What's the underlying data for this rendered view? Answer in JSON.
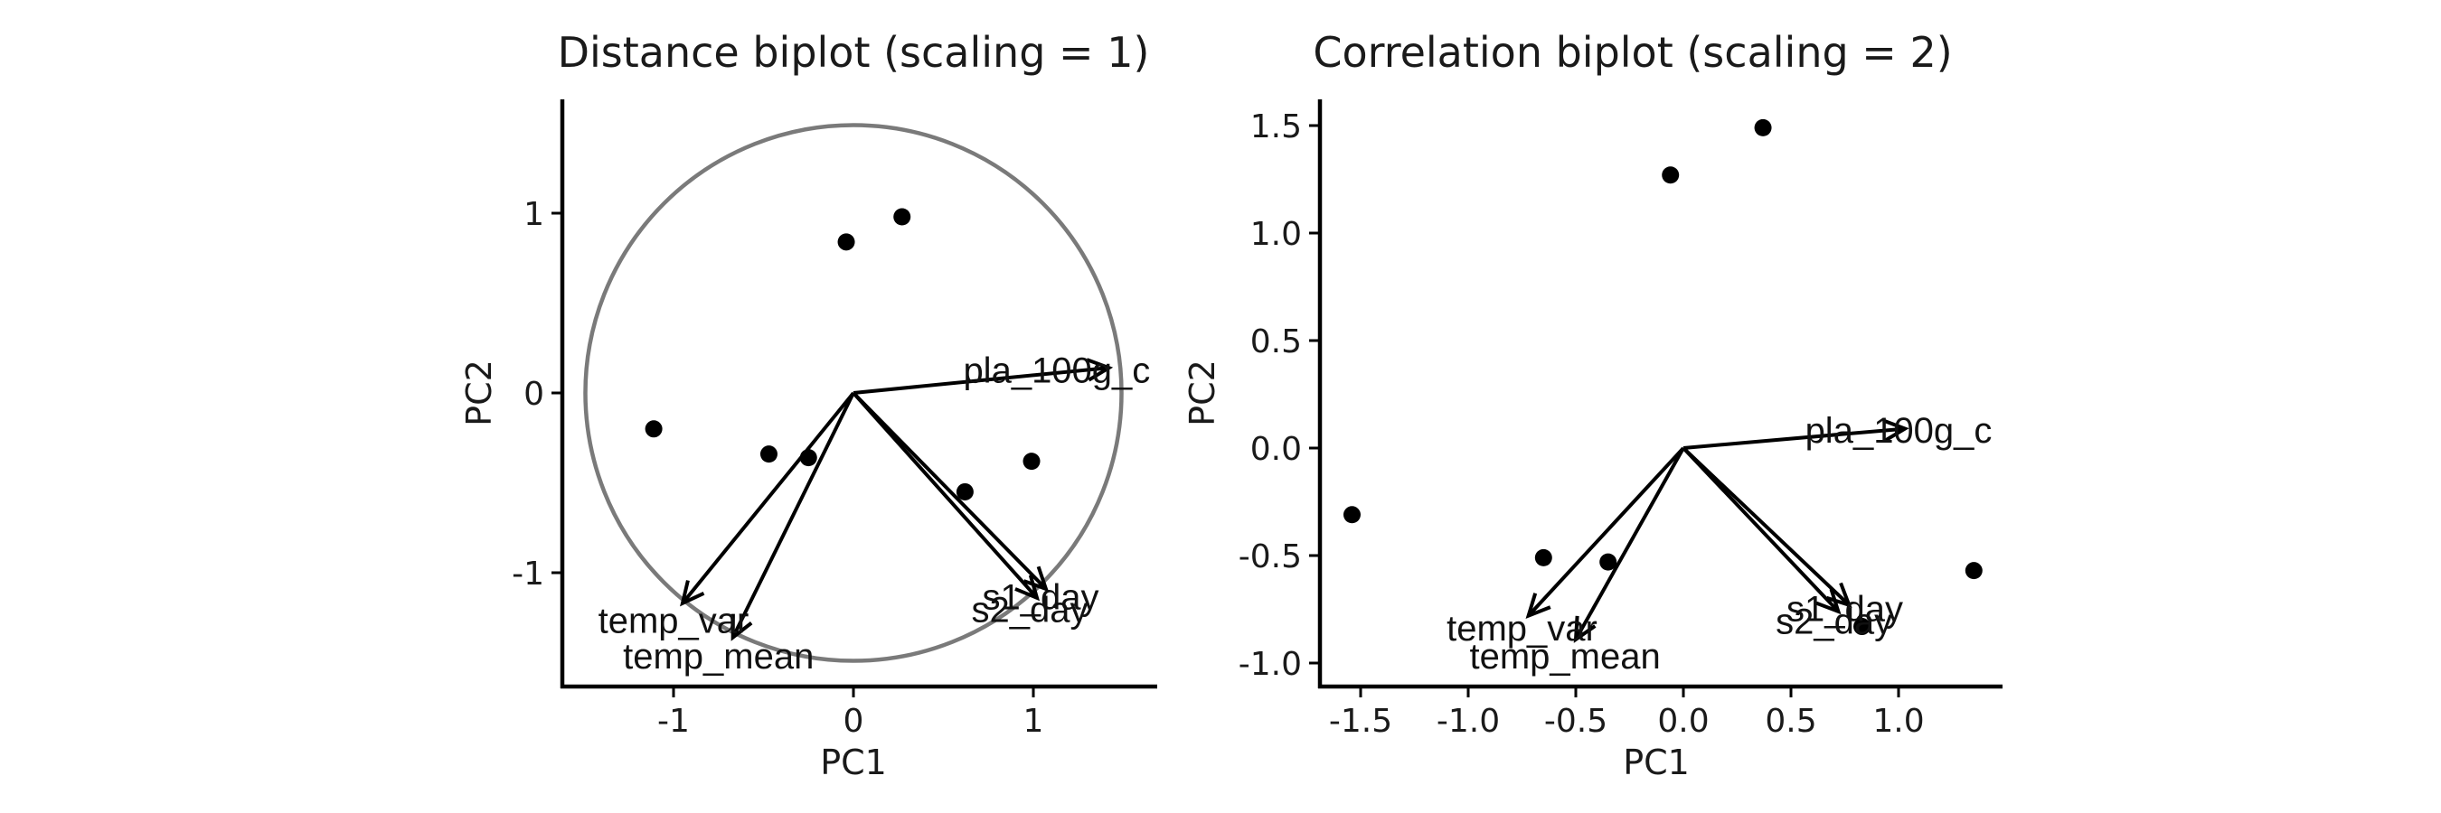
{
  "chart_data": [
    {
      "type": "scatter",
      "title": "Distance biplot (scaling = 1)",
      "xlabel": "PC1",
      "ylabel": "PC2",
      "xlim": [
        -1.62,
        1.68
      ],
      "ylim": [
        -1.62,
        1.62
      ],
      "xticks": [
        -1,
        0,
        1
      ],
      "yticks": [
        -1,
        0,
        1
      ],
      "grid": false,
      "equilibrium_circle": {
        "center": [
          0,
          0
        ],
        "radius": 1.49
      },
      "points": [
        {
          "x": -1.11,
          "y": -0.2
        },
        {
          "x": -0.47,
          "y": -0.34
        },
        {
          "x": -0.25,
          "y": -0.36
        },
        {
          "x": -0.04,
          "y": 0.84
        },
        {
          "x": 0.27,
          "y": 0.98
        },
        {
          "x": 0.62,
          "y": -0.55
        },
        {
          "x": 0.99,
          "y": -0.38
        }
      ],
      "loadings": [
        {
          "label": "pla_100g_c",
          "x": 1.42,
          "y": 0.14,
          "label_x": 1.13,
          "label_y": 0.11
        },
        {
          "label": "s1_day",
          "x": 1.07,
          "y": -1.09,
          "label_x": 1.04,
          "label_y": -1.15
        },
        {
          "label": "s2_day",
          "x": 1.02,
          "y": -1.14,
          "label_x": 0.98,
          "label_y": -1.22
        },
        {
          "label": "temp_var",
          "x": -0.95,
          "y": -1.17,
          "label_x": -1.0,
          "label_y": -1.28
        },
        {
          "label": "temp_mean",
          "x": -0.67,
          "y": -1.36,
          "label_x": -0.75,
          "label_y": -1.48
        }
      ]
    },
    {
      "type": "scatter",
      "title": "Correlation biplot (scaling = 2)",
      "xlabel": "PC1",
      "ylabel": "PC2",
      "xlim": [
        -1.64,
        1.5
      ],
      "ylim": [
        -1.1,
        1.6
      ],
      "xticks": [
        -1.5,
        -1.0,
        -0.5,
        0.0,
        0.5,
        1.0
      ],
      "yticks": [
        -1.0,
        -0.5,
        0.0,
        0.5,
        1.0,
        1.5
      ],
      "tick_labels_x": [
        "-1.5",
        "-1.0",
        "-0.5",
        "0.0",
        "0.5",
        "1.0"
      ],
      "tick_labels_y": [
        "-1.0",
        "-0.5",
        "0.0",
        "0.5",
        "1.0",
        "1.5"
      ],
      "grid": false,
      "points": [
        {
          "x": -1.54,
          "y": -0.31
        },
        {
          "x": -0.65,
          "y": -0.51
        },
        {
          "x": -0.35,
          "y": -0.53
        },
        {
          "x": -0.06,
          "y": 1.27
        },
        {
          "x": 0.37,
          "y": 1.49
        },
        {
          "x": 0.83,
          "y": -0.83
        },
        {
          "x": 1.35,
          "y": -0.57
        }
      ],
      "loadings": [
        {
          "label": "pla_100g_c",
          "x": 1.03,
          "y": 0.09,
          "label_x": 1.0,
          "label_y": 0.07
        },
        {
          "label": "s1_day",
          "x": 0.77,
          "y": -0.73,
          "label_x": 0.75,
          "label_y": -0.76
        },
        {
          "label": "s2_day",
          "x": 0.72,
          "y": -0.76,
          "label_x": 0.7,
          "label_y": -0.82
        },
        {
          "label": "temp_var",
          "x": -0.72,
          "y": -0.78,
          "label_x": -0.75,
          "label_y": -0.85
        },
        {
          "label": "temp_mean",
          "x": -0.5,
          "y": -0.89,
          "label_x": -0.55,
          "label_y": -0.98
        }
      ]
    }
  ]
}
